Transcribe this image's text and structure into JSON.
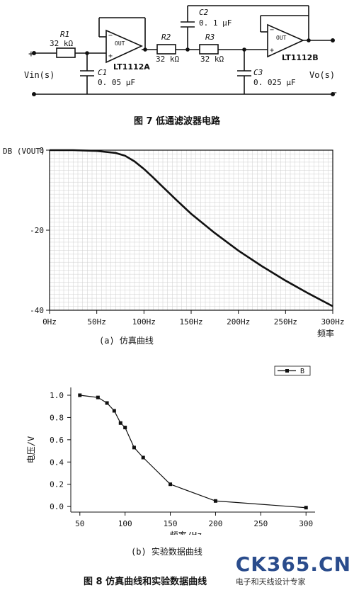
{
  "circuit": {
    "labels": {
      "r1": "R1",
      "r1_val": "32 kΩ",
      "r2": "R2",
      "r2_val": "32 kΩ",
      "r3": "R3",
      "r3_val": "32 kΩ",
      "c1": "C1",
      "c1_val": "0. 05 μF",
      "c2": "C2",
      "c2_val": "0. 1 μF",
      "c3": "C3",
      "c3_val": "0. 025 μF",
      "opa": "LT1112A",
      "opb": "LT1112B",
      "out": "OUT",
      "vin": "Vin(s)",
      "vo": "Vo(s)",
      "plus": "+",
      "minus": "−"
    },
    "caption": "图 7   低通滤波器电路"
  },
  "chart_data": [
    {
      "type": "line",
      "ylabel": "DB (VOUT)",
      "x_ticks": [
        "0Hz",
        "50Hz",
        "100Hz",
        "150Hz",
        "200Hz",
        "250Hz",
        "300Hz"
      ],
      "y_ticks": [
        "0",
        "-20",
        "-40"
      ],
      "x_unit_label": "频率",
      "xlim": [
        0,
        300
      ],
      "ylim": [
        -40,
        0
      ],
      "x": [
        0,
        25,
        50,
        70,
        80,
        90,
        100,
        110,
        120,
        135,
        150,
        175,
        200,
        225,
        250,
        275,
        300
      ],
      "y": [
        0,
        0,
        -0.2,
        -0.7,
        -1.4,
        -2.8,
        -4.7,
        -6.9,
        -9.2,
        -12.6,
        -15.9,
        -20.7,
        -25.1,
        -29.0,
        -32.6,
        -35.9,
        -39.0
      ],
      "caption": "(a) 仿真曲线",
      "grid": true,
      "series_color": "#111111"
    },
    {
      "type": "line",
      "xlabel": "频率/Hz",
      "ylabel": "电压/V",
      "x_ticks": [
        "50",
        "100",
        "150",
        "200",
        "250",
        "300"
      ],
      "y_ticks": [
        "0.0",
        "0.2",
        "0.4",
        "0.6",
        "0.8",
        "1.0"
      ],
      "xlim": [
        40,
        310
      ],
      "ylim": [
        -0.05,
        1.07
      ],
      "legend": {
        "label": "B",
        "position": "top-right"
      },
      "x": [
        50,
        70,
        80,
        88,
        95,
        100,
        110,
        120,
        150,
        200,
        300
      ],
      "y": [
        1.0,
        0.98,
        0.93,
        0.86,
        0.75,
        0.71,
        0.53,
        0.44,
        0.2,
        0.05,
        -0.01
      ],
      "caption": "(b) 实验数据曲线",
      "grid": false,
      "series_color": "#111111"
    }
  ],
  "figure8_caption": "图 8   仿真曲线和实验数据曲线",
  "watermark": {
    "logo": "CK365.CN",
    "tagline": "电子和天线设计专家"
  }
}
